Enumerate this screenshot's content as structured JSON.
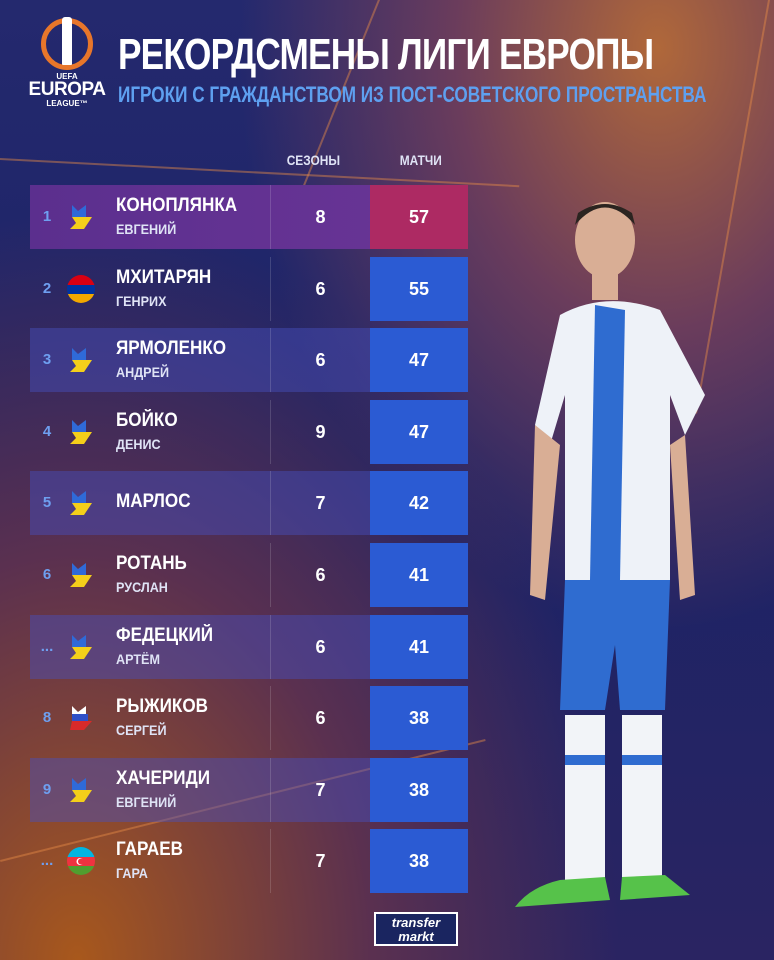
{
  "header": {
    "title": "РЕКОРДСМЕНЫ ЛИГИ ЕВРОПЫ",
    "subtitle": "ИГРОКИ С ГРАЖДАНСТВОМ ИЗ ПОСТ-СОВЕТСКОГО ПРОСТРАНСТВА"
  },
  "logo": {
    "uefa": "UEFA",
    "europa": "EUROPA",
    "league": "LEAGUE™"
  },
  "columns": {
    "seasons": "СЕЗОНЫ",
    "matches": "МАТЧИ"
  },
  "rows": [
    {
      "rank": "1",
      "flag": "ukraine",
      "surname": "КОНОПЛЯНКА",
      "first": "ЕВГЕНИЙ",
      "seasons": "8",
      "matches": "57"
    },
    {
      "rank": "2",
      "flag": "armenia",
      "surname": "МХИТАРЯН",
      "first": "ГЕНРИХ",
      "seasons": "6",
      "matches": "55"
    },
    {
      "rank": "3",
      "flag": "ukraine",
      "surname": "ЯРМОЛЕНКО",
      "first": "АНДРЕЙ",
      "seasons": "6",
      "matches": "47"
    },
    {
      "rank": "4",
      "flag": "ukraine",
      "surname": "БОЙКО",
      "first": "ДЕНИС",
      "seasons": "9",
      "matches": "47"
    },
    {
      "rank": "5",
      "flag": "ukraine",
      "surname": "МАРЛОС",
      "first": "",
      "seasons": "7",
      "matches": "42"
    },
    {
      "rank": "6",
      "flag": "ukraine",
      "surname": "РОТАНЬ",
      "first": "РУСЛАН",
      "seasons": "6",
      "matches": "41"
    },
    {
      "rank": "...",
      "flag": "ukraine",
      "surname": "ФЕДЕЦКИЙ",
      "first": "АРТЁМ",
      "seasons": "6",
      "matches": "41"
    },
    {
      "rank": "8",
      "flag": "russia",
      "surname": "РЫЖИКОВ",
      "first": "СЕРГЕЙ",
      "seasons": "6",
      "matches": "38"
    },
    {
      "rank": "9",
      "flag": "ukraine",
      "surname": "ХАЧЕРИДИ",
      "first": "ЕВГЕНИЙ",
      "seasons": "7",
      "matches": "38"
    },
    {
      "rank": "...",
      "flag": "azerbaijan",
      "surname": "ГАРАЕВ",
      "first": "ГАРА",
      "seasons": "7",
      "matches": "38"
    }
  ],
  "footer": {
    "brand_line1": "transfer",
    "brand_line2": "markt"
  },
  "colors": {
    "accent_pink": "#ad2a63",
    "accent_blue": "#2b5bd3",
    "subtitle_blue": "#5ea0f0",
    "logo_orange": "#e8762a"
  }
}
